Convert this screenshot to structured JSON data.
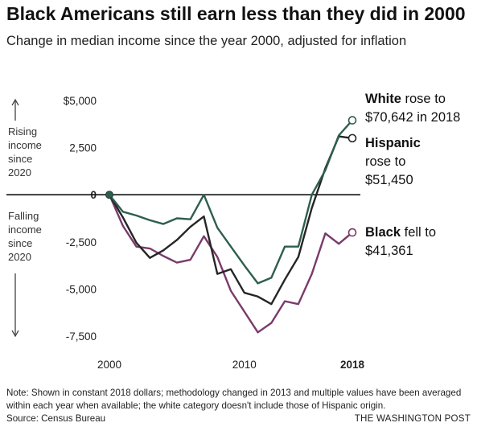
{
  "title": "Black Americans still earn less than they did in 2000",
  "subtitle": "Change in median income since the year 2000, adjusted for inflation",
  "side_labels": {
    "rising": [
      "Rising",
      "income",
      "since",
      "2020"
    ],
    "falling": [
      "Falling",
      "income",
      "since",
      "2020"
    ]
  },
  "annotations": {
    "white": {
      "bold": "White",
      "rest1": " rose to",
      "rest2": "$70,642 in 2018"
    },
    "hispanic": {
      "bold": "Hispanic",
      "rest1": "rose to",
      "rest2": "$51,450"
    },
    "black": {
      "bold": "Black",
      "rest1": " fell to",
      "rest2": "$41,361"
    }
  },
  "note": "Note: Shown in constant 2018 dollars; methodology changed in 2013 and multiple values have been averaged within each year when available; the white category doesn't include those of Hispanic origin.",
  "source": "Source: Census Bureau",
  "brand": "THE WASHINGTON POST",
  "colors": {
    "white": "#2e5e4e",
    "hispanic": "#252525",
    "black": "#7a3a6a",
    "axis": "#111111",
    "tick_text": "#222222"
  },
  "chart_data": {
    "type": "line",
    "x": [
      2000,
      2001,
      2002,
      2003,
      2004,
      2005,
      2006,
      2007,
      2008,
      2009,
      2010,
      2011,
      2012,
      2013,
      2014,
      2015,
      2016,
      2017,
      2018
    ],
    "series": [
      {
        "name": "White",
        "values": [
          0,
          -900,
          -1100,
          -1350,
          -1550,
          -1250,
          -1300,
          0,
          -1750,
          -2750,
          -3750,
          -4700,
          -4400,
          -2750,
          -2750,
          0,
          1300,
          3150,
          3950
        ]
      },
      {
        "name": "Hispanic",
        "values": [
          0,
          -1200,
          -2550,
          -3350,
          -2950,
          -2400,
          -1700,
          -1150,
          -4200,
          -3950,
          -5200,
          -5400,
          -5800,
          -4500,
          -3300,
          -700,
          1400,
          3100,
          3000
        ]
      },
      {
        "name": "Black",
        "values": [
          0,
          -1650,
          -2750,
          -2850,
          -3250,
          -3600,
          -3450,
          -2200,
          -3300,
          -5100,
          -6200,
          -7300,
          -6800,
          -5650,
          -5800,
          -4200,
          -2050,
          -2600,
          -2000
        ]
      }
    ],
    "xticks": [
      2000,
      2010,
      2018
    ],
    "xtick_labels": [
      "2000",
      "2010",
      "2018"
    ],
    "yticks": [
      5000,
      2500,
      0,
      -2500,
      -5000,
      -7500
    ],
    "ytick_labels": [
      "$5,000",
      "2,500",
      "0",
      "-2,500",
      "-5,000",
      "-7,500"
    ],
    "xlim": [
      2000,
      2018
    ],
    "ylim": [
      -7500,
      5000
    ],
    "grid": false
  }
}
